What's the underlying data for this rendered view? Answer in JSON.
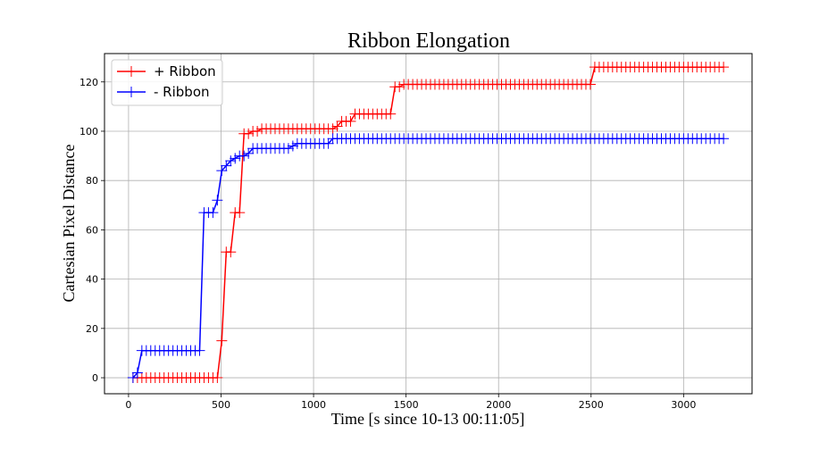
{
  "chart_data": {
    "type": "line",
    "title": "Ribbon Elongation",
    "xlabel": "Time [s since 10-13 00:11:05]",
    "ylabel": "Cartesian Pixel Distance",
    "xlim": [
      -130,
      3370
    ],
    "ylim": [
      -6.5,
      131.5
    ],
    "xticks": [
      0,
      500,
      1000,
      1500,
      2000,
      2500,
      3000
    ],
    "yticks": [
      0,
      20,
      40,
      60,
      80,
      100,
      120
    ],
    "grid": true,
    "legend_position": "top-left",
    "marker": "+",
    "series": [
      {
        "name": "+ Ribbon",
        "color": "#ff0000",
        "x": [
          24,
          48,
          72,
          96,
          120,
          144,
          168,
          192,
          216,
          240,
          264,
          288,
          312,
          336,
          360,
          384,
          408,
          432,
          456,
          480,
          504,
          528,
          552,
          576,
          600,
          624,
          648,
          672,
          696,
          720,
          744,
          768,
          792,
          816,
          840,
          864,
          888,
          912,
          936,
          960,
          984,
          1008,
          1032,
          1056,
          1080,
          1104,
          1128,
          1152,
          1176,
          1200,
          1224,
          1248,
          1272,
          1296,
          1320,
          1344,
          1368,
          1392,
          1416,
          1440,
          1464,
          1488,
          1512,
          1536,
          1560,
          1584,
          1608,
          1632,
          1656,
          1680,
          1704,
          1728,
          1752,
          1776,
          1800,
          1824,
          1848,
          1872,
          1896,
          1920,
          1944,
          1968,
          1992,
          2016,
          2040,
          2064,
          2088,
          2112,
          2136,
          2160,
          2184,
          2208,
          2232,
          2256,
          2280,
          2304,
          2328,
          2352,
          2376,
          2400,
          2424,
          2448,
          2472,
          2496,
          2520,
          2544,
          2568,
          2592,
          2616,
          2640,
          2664,
          2688,
          2712,
          2736,
          2760,
          2784,
          2808,
          2832,
          2856,
          2880,
          2904,
          2928,
          2952,
          2976,
          3000,
          3024,
          3048,
          3072,
          3096,
          3120,
          3144,
          3168,
          3192,
          3216
        ],
        "y": [
          0,
          0,
          0,
          0,
          0,
          0,
          0,
          0,
          0,
          0,
          0,
          0,
          0,
          0,
          0,
          0,
          0,
          0,
          0,
          0,
          15,
          51,
          51,
          67,
          67,
          99,
          99,
          100,
          100,
          101,
          101,
          101,
          101,
          101,
          101,
          101,
          101,
          101,
          101,
          101,
          101,
          101,
          101,
          101,
          101,
          101,
          102,
          104,
          104,
          104,
          107,
          107,
          107,
          107,
          107,
          107,
          107,
          107,
          107,
          118,
          118,
          119,
          119,
          119,
          119,
          119,
          119,
          119,
          119,
          119,
          119,
          119,
          119,
          119,
          119,
          119,
          119,
          119,
          119,
          119,
          119,
          119,
          119,
          119,
          119,
          119,
          119,
          119,
          119,
          119,
          119,
          119,
          119,
          119,
          119,
          119,
          119,
          119,
          119,
          119,
          119,
          119,
          119,
          119,
          126,
          126,
          126,
          126,
          126,
          126,
          126,
          126,
          126,
          126,
          126,
          126,
          126,
          126,
          126,
          126,
          126,
          126,
          126,
          126,
          126,
          126,
          126,
          126,
          126,
          126,
          126,
          126,
          126,
          126
        ]
      },
      {
        "name": "- Ribbon",
        "color": "#0000ff",
        "x": [
          24,
          48,
          72,
          96,
          120,
          144,
          168,
          192,
          216,
          240,
          264,
          288,
          312,
          336,
          360,
          384,
          408,
          432,
          456,
          480,
          504,
          528,
          552,
          576,
          600,
          624,
          648,
          672,
          696,
          720,
          744,
          768,
          792,
          816,
          840,
          864,
          888,
          912,
          936,
          960,
          984,
          1008,
          1032,
          1056,
          1080,
          1104,
          1128,
          1152,
          1176,
          1200,
          1224,
          1248,
          1272,
          1296,
          1320,
          1344,
          1368,
          1392,
          1416,
          1440,
          1464,
          1488,
          1512,
          1536,
          1560,
          1584,
          1608,
          1632,
          1656,
          1680,
          1704,
          1728,
          1752,
          1776,
          1800,
          1824,
          1848,
          1872,
          1896,
          1920,
          1944,
          1968,
          1992,
          2016,
          2040,
          2064,
          2088,
          2112,
          2136,
          2160,
          2184,
          2208,
          2232,
          2256,
          2280,
          2304,
          2328,
          2352,
          2376,
          2400,
          2424,
          2448,
          2472,
          2496,
          2520,
          2544,
          2568,
          2592,
          2616,
          2640,
          2664,
          2688,
          2712,
          2736,
          2760,
          2784,
          2808,
          2832,
          2856,
          2880,
          2904,
          2928,
          2952,
          2976,
          3000,
          3024,
          3048,
          3072,
          3096,
          3120,
          3144,
          3168,
          3192,
          3216
        ],
        "y": [
          0,
          2,
          11,
          11,
          11,
          11,
          11,
          11,
          11,
          11,
          11,
          11,
          11,
          11,
          11,
          11,
          67,
          67,
          67,
          72,
          84,
          86,
          88,
          89,
          90,
          90,
          91,
          93,
          93,
          93,
          93,
          93,
          93,
          93,
          93,
          93,
          94,
          95,
          95,
          95,
          95,
          95,
          95,
          95,
          95,
          97,
          97,
          97,
          97,
          97,
          97,
          97,
          97,
          97,
          97,
          97,
          97,
          97,
          97,
          97,
          97,
          97,
          97,
          97,
          97,
          97,
          97,
          97,
          97,
          97,
          97,
          97,
          97,
          97,
          97,
          97,
          97,
          97,
          97,
          97,
          97,
          97,
          97,
          97,
          97,
          97,
          97,
          97,
          97,
          97,
          97,
          97,
          97,
          97,
          97,
          97,
          97,
          97,
          97,
          97,
          97,
          97,
          97,
          97,
          97,
          97,
          97,
          97,
          97,
          97,
          97,
          97,
          97,
          97,
          97,
          97,
          97,
          97,
          97,
          97,
          97,
          97,
          97,
          97,
          97,
          97,
          97,
          97,
          97,
          97,
          97,
          97,
          97,
          97
        ]
      }
    ]
  }
}
